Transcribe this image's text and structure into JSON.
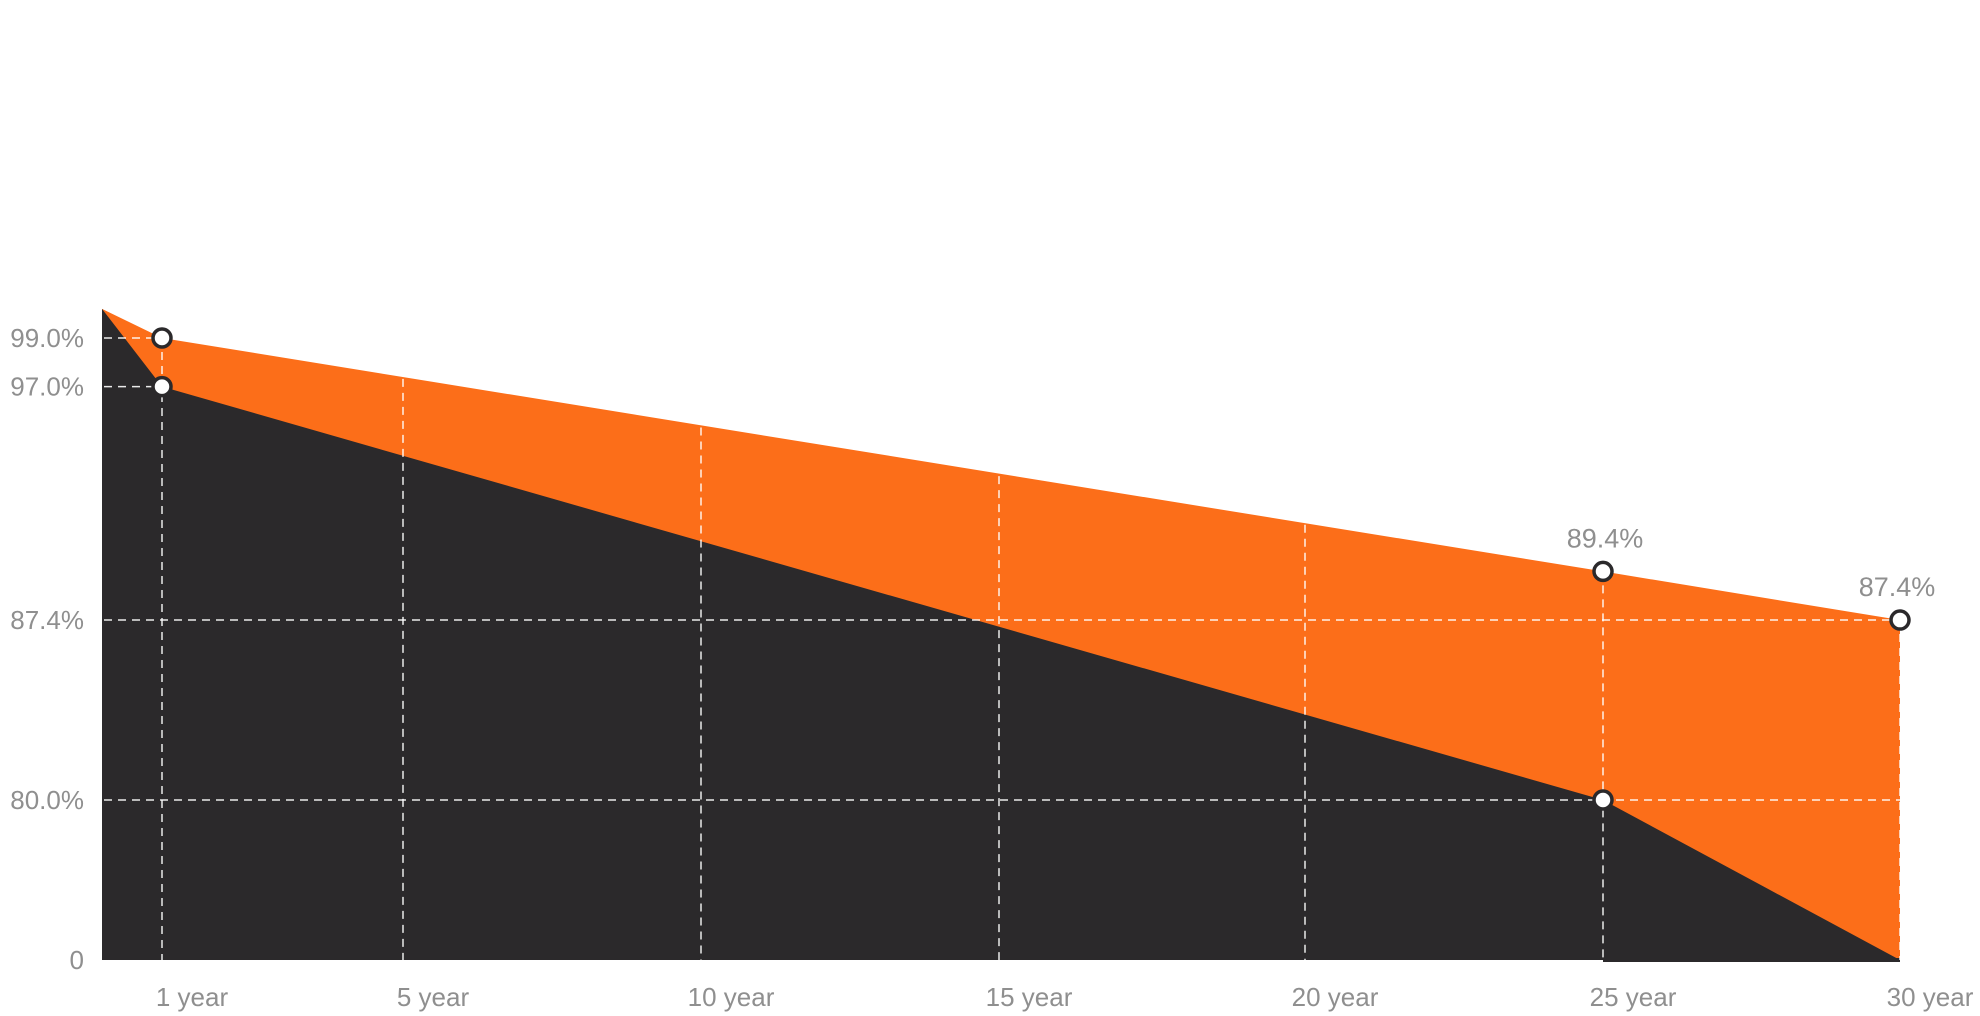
{
  "chart_data": {
    "type": "area",
    "title": "",
    "xlabel": "",
    "ylabel": "",
    "colors": {
      "upper_area": "#fc6e19",
      "lower_area": "#2b292b",
      "gridline": "#ffffff",
      "tick_text": "#8f8f8f",
      "marker_fill": "#ffffff",
      "marker_stroke": "#2b292b"
    },
    "x_ticks": [
      {
        "x": 1,
        "label": "1 year"
      },
      {
        "x": 5,
        "label": "5 year"
      },
      {
        "x": 10,
        "label": "10 year"
      },
      {
        "x": 15,
        "label": "15 year"
      },
      {
        "x": 20,
        "label": "20 year"
      },
      {
        "x": 25,
        "label": "25 year"
      },
      {
        "x": 30,
        "label": "30 year"
      }
    ],
    "y_ticks": [
      {
        "y": 99.0,
        "label": "99.0%"
      },
      {
        "y": 97.0,
        "label": "97.0%"
      },
      {
        "y": 87.4,
        "label": "87.4%"
      },
      {
        "y": 80.0,
        "label": "80.0%"
      },
      {
        "y": 0,
        "label": "0"
      }
    ],
    "series": [
      {
        "points": [
          {
            "x": 0,
            "y": 100.2
          },
          {
            "x": 1,
            "y": 99.0,
            "marker": true
          },
          {
            "x": 25,
            "y": 89.4,
            "marker": true,
            "label": "89.4%"
          },
          {
            "x": 30,
            "y": 87.4,
            "marker": true,
            "label": "87.4%"
          }
        ]
      },
      {
        "points": [
          {
            "x": 0,
            "y": 100.2
          },
          {
            "x": 1,
            "y": 97.0,
            "marker": true
          },
          {
            "x": 25,
            "y": 80.0,
            "marker": true
          },
          {
            "x": 30,
            "y": 0
          }
        ]
      }
    ],
    "grid": true,
    "legend": "none"
  }
}
